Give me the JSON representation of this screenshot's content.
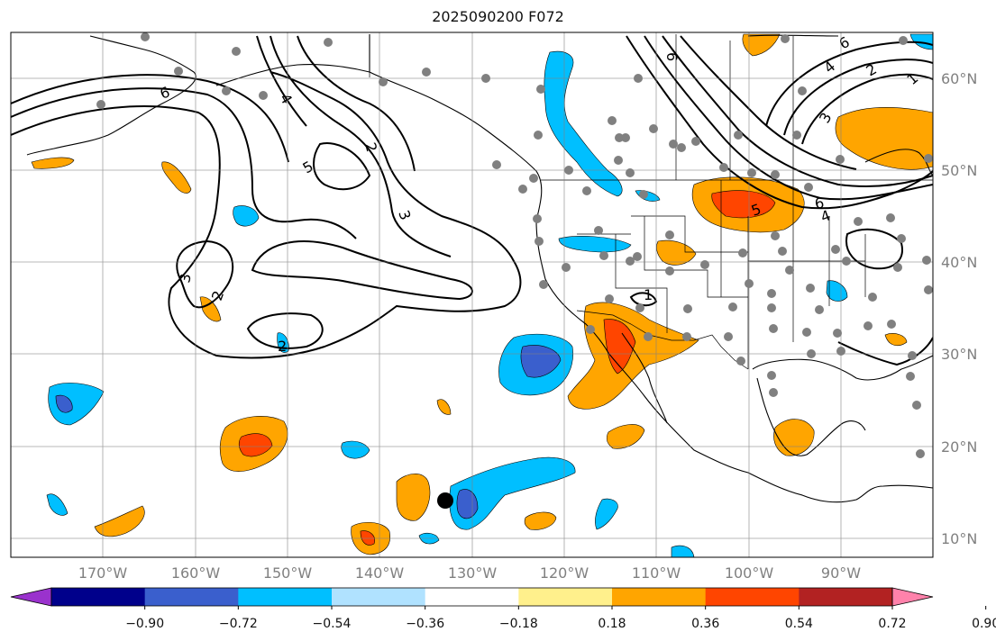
{
  "title": "2025090200 F072",
  "map": {
    "lon_range": [
      -180,
      -80
    ],
    "lat_range": [
      8,
      65
    ],
    "lon_ticks": [
      "170°W",
      "160°W",
      "150°W",
      "140°W",
      "130°W",
      "120°W",
      "110°W",
      "100°W",
      "90°W"
    ],
    "lat_ticks": [
      "10°N",
      "20°N",
      "30°N",
      "40°N",
      "50°N",
      "60°N"
    ],
    "grid": true,
    "contour_labels": [
      "6",
      "5",
      "4",
      "3",
      "2",
      "1"
    ],
    "marker": "black-dot"
  },
  "colorbar": {
    "labels": [
      "−0.90",
      "−0.72",
      "−0.54",
      "−0.36",
      "−0.18",
      "0.18",
      "0.36",
      "0.54",
      "0.72",
      "0.90"
    ],
    "colors": [
      "#9a32cd",
      "#00008b",
      "#3a5fcd",
      "#00bfff",
      "#b0e2ff",
      "#ffffff",
      "#fff08c",
      "#ffa500",
      "#ff4500",
      "#b22222",
      "#ff82ab"
    ],
    "extend": "both"
  }
}
